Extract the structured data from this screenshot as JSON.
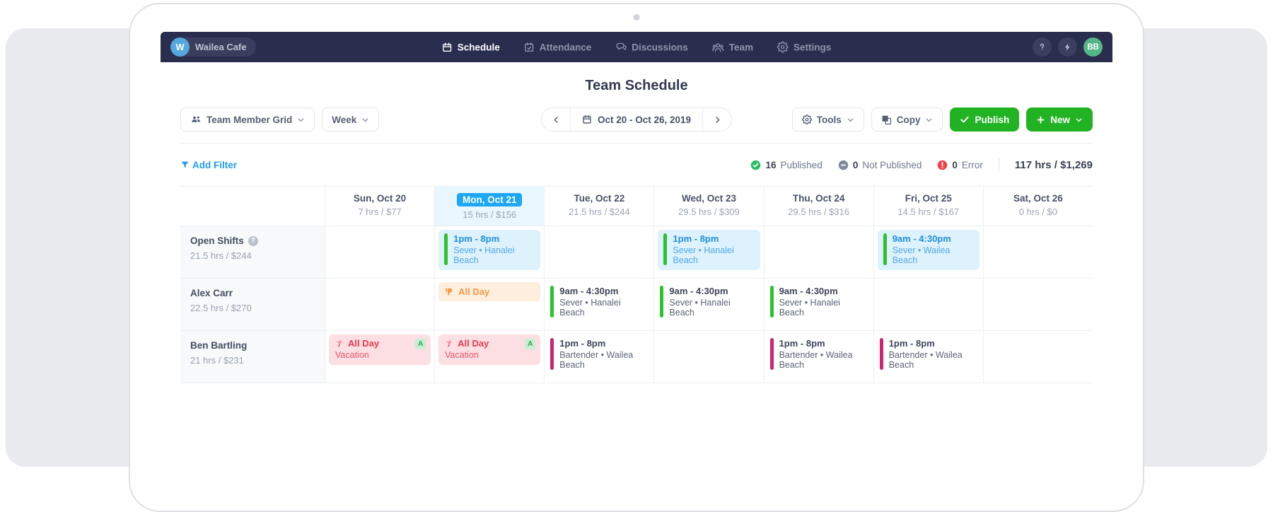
{
  "navbar": {
    "workspace": {
      "initial": "W",
      "name": "Wailea Cafe"
    },
    "items": [
      {
        "label": "Schedule",
        "icon": "calendar-icon",
        "active": true
      },
      {
        "label": "Attendance",
        "icon": "calendar-check-icon",
        "active": false
      },
      {
        "label": "Discussions",
        "icon": "chat-bubbles-icon",
        "active": false
      },
      {
        "label": "Team",
        "icon": "people-icon",
        "active": false
      },
      {
        "label": "Settings",
        "icon": "gear-icon",
        "active": false
      }
    ],
    "right_icons": [
      "help-icon",
      "bolt-icon"
    ],
    "user_initials": "BB"
  },
  "header": {
    "title": "Team Schedule"
  },
  "toolbar": {
    "view_dropdown": "Team Member Grid",
    "range_dropdown": "Week",
    "date_range": "Oct 20 - Oct 26, 2019",
    "tools_label": "Tools",
    "copy_label": "Copy",
    "publish_label": "Publish",
    "new_label": "New"
  },
  "filter_bar": {
    "add_filter_label": "Add Filter",
    "stats": [
      {
        "count": "16",
        "label": "Published",
        "icon": "check-circle-icon",
        "color": "#2dbe64"
      },
      {
        "count": "0",
        "label": "Not Published",
        "icon": "minus-circle-icon",
        "color": "#7f8a99"
      },
      {
        "count": "0",
        "label": "Error",
        "icon": "error-circle-icon",
        "color": "#f0414b"
      }
    ],
    "total": "117 hrs / $1,269"
  },
  "schedule": {
    "days": [
      {
        "label": "Sun, Oct 20",
        "sub": "7 hrs / $77",
        "today": false
      },
      {
        "label": "Mon, Oct 21",
        "sub": "15 hrs / $156",
        "today": true
      },
      {
        "label": "Tue, Oct 22",
        "sub": "21.5 hrs / $244",
        "today": false
      },
      {
        "label": "Wed, Oct 23",
        "sub": "29.5 hrs / $309",
        "today": false
      },
      {
        "label": "Thu, Oct 24",
        "sub": "29.5 hrs / $316",
        "today": false
      },
      {
        "label": "Fri, Oct 25",
        "sub": "14.5 hrs / $167",
        "today": false
      },
      {
        "label": "Sat, Oct 26",
        "sub": "0 hrs / $0",
        "today": false
      }
    ],
    "rows": [
      {
        "name": "Open Shifts",
        "help": true,
        "sub": "21.5 hrs / $244",
        "cells": [
          null,
          {
            "type": "open",
            "time": "1pm - 8pm",
            "detail": "Sever • Hanalei Beach"
          },
          null,
          {
            "type": "open",
            "time": "1pm - 8pm",
            "detail": "Sever • Hanalei Beach"
          },
          null,
          {
            "type": "open",
            "time": "9am - 4:30pm",
            "detail": "Sever • Wailea Beach"
          },
          null
        ]
      },
      {
        "name": "Alex Carr",
        "help": false,
        "sub": "22.5 hrs / $270",
        "cells": [
          null,
          {
            "type": "unavailable",
            "label": "All Day"
          },
          {
            "type": "shift",
            "accent": "green",
            "time": "9am - 4:30pm",
            "detail": "Sever • Hanalei Beach"
          },
          {
            "type": "shift",
            "accent": "green",
            "time": "9am - 4:30pm",
            "detail": "Sever • Hanalei Beach"
          },
          {
            "type": "shift",
            "accent": "green",
            "time": "9am - 4:30pm",
            "detail": "Sever • Hanalei Beach"
          },
          null,
          null
        ]
      },
      {
        "name": "Ben Bartling",
        "help": false,
        "sub": "21 hrs / $231",
        "cells": [
          {
            "type": "timeoff",
            "label": "All Day",
            "sub": "Vacation",
            "badge": "A"
          },
          {
            "type": "timeoff",
            "label": "All Day",
            "sub": "Vacation",
            "badge": "A"
          },
          {
            "type": "shift",
            "accent": "magenta",
            "time": "1pm - 8pm",
            "detail": "Bartender • Wailea Beach"
          },
          null,
          {
            "type": "shift",
            "accent": "magenta",
            "time": "1pm - 8pm",
            "detail": "Bartender • Wailea Beach"
          },
          {
            "type": "shift",
            "accent": "magenta",
            "time": "1pm - 8pm",
            "detail": "Bartender • Wailea Beach"
          },
          null
        ]
      }
    ]
  },
  "colors": {
    "navy": "#2a2e4e",
    "accent_blue": "#1ea7f4",
    "button_green": "#22b324",
    "bar_green": "#2bc22b",
    "bar_magenta": "#cb2575",
    "unavailable_orange": "#f79b44",
    "timeoff_red": "#e23b52",
    "published_green": "#2dbe64",
    "error_red": "#f0414b"
  }
}
